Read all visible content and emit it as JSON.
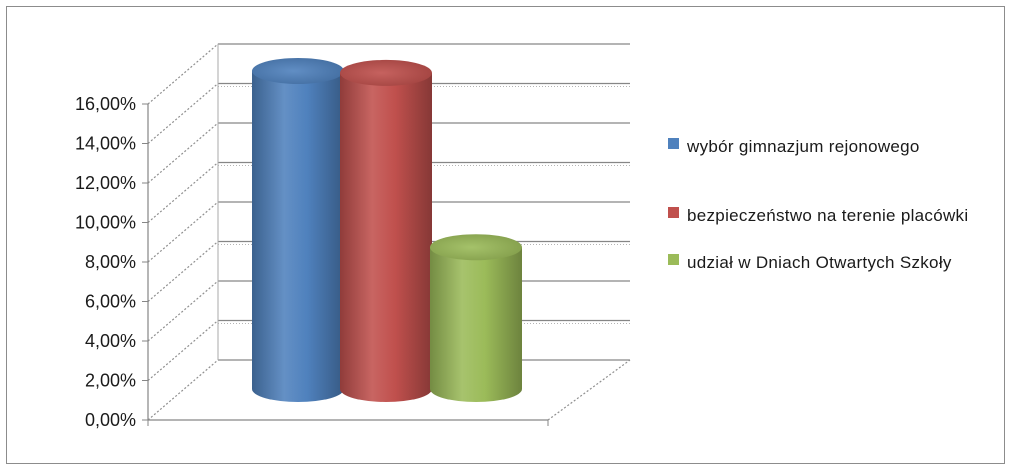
{
  "chart_data": {
    "type": "bar",
    "categories": [
      "wybór gimnazjum rejonowego",
      "bezpieczeństwo na terenie placówki",
      "udział w Dniach Otwartych Szkoły"
    ],
    "values": [
      0.166,
      0.165,
      0.074
    ],
    "colors": [
      "#4f81bd",
      "#c0504d",
      "#9bbb59"
    ],
    "ylim": [
      0,
      0.16
    ],
    "yticks": [
      "0,00%",
      "2,00%",
      "4,00%",
      "6,00%",
      "8,00%",
      "10,00%",
      "12,00%",
      "14,00%",
      "16,00%"
    ],
    "grid": true,
    "legend_position": "right"
  }
}
